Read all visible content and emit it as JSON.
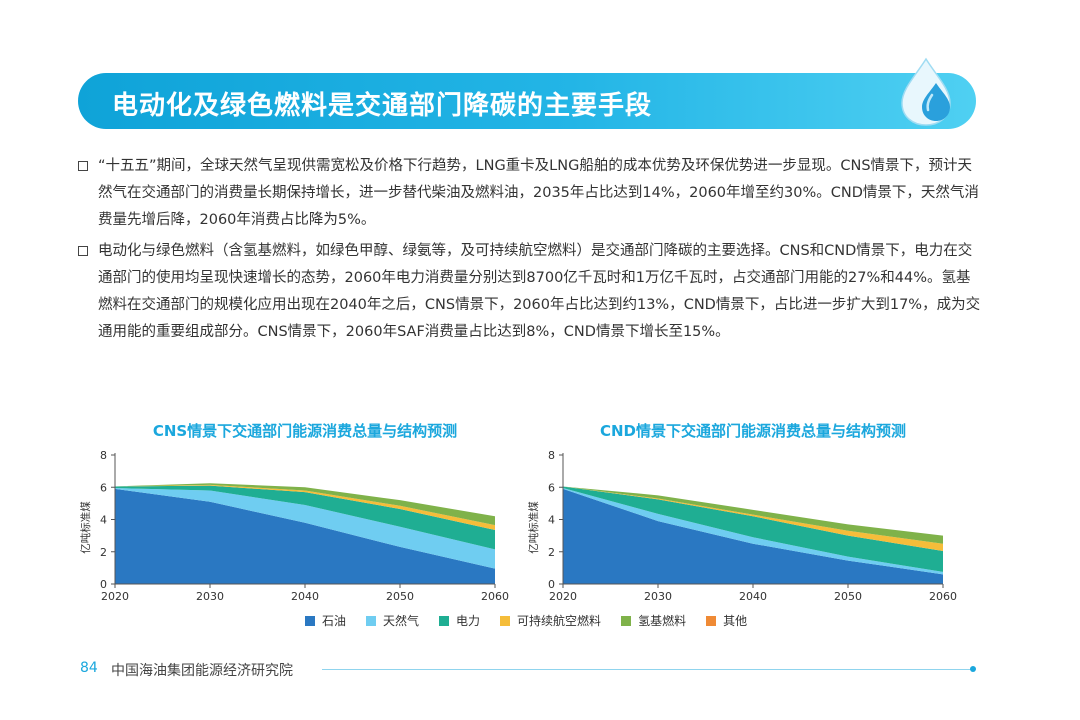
{
  "header": {
    "title": "电动化及绿色燃料是交通部门降碳的主要手段"
  },
  "paragraphs": [
    "“十五五”期间，全球天然气呈现供需宽松及价格下行趋势，LNG重卡及LNG船舶的成本优势及环保优势进一步显现。CNS情景下，预计天然气在交通部门的消费量长期保持增长，进一步替代柴油及燃料油，2035年占比达到14%，2060年增至约30%。CND情景下，天然气消费量先增后降，2060年消费占比降为5%。",
    "电动化与绿色燃料（含氢基燃料，如绿色甲醇、绿氨等，及可持续航空燃料）是交通部门降碳的主要选择。CNS和CND情景下，电力在交通部门的使用均呈现快速增长的态势，2060年电力消费量分别达到8700亿千瓦时和1万亿千瓦时，占交通部门用能的27%和44%。氢基燃料在交通部门的规模化应用出现在2040年之后，CNS情景下，2060年占比达到约13%，CND情景下，占比进一步扩大到17%，成为交通用能的重要组成部分。CNS情景下，2060年SAF消费量占比达到8%，CND情景下增长至15%。"
  ],
  "chart_data": [
    {
      "type": "area",
      "stacked": true,
      "title": "CNS情景下交通部门能源消费总量与结构预测",
      "ylabel": "亿吨标准煤",
      "xlabel": "",
      "x": [
        2020,
        2030,
        2040,
        2050,
        2060
      ],
      "ylim": [
        0,
        8
      ],
      "yticks": [
        0,
        2,
        4,
        6,
        8
      ],
      "series": [
        {
          "name": "石油",
          "values": [
            5.9,
            5.1,
            3.8,
            2.3,
            0.95
          ]
        },
        {
          "name": "天然气",
          "values": [
            0.05,
            0.7,
            1.1,
            1.25,
            1.2
          ]
        },
        {
          "name": "电力",
          "values": [
            0.1,
            0.3,
            0.8,
            1.1,
            1.2
          ]
        },
        {
          "name": "可持续航空燃料",
          "values": [
            0.0,
            0.05,
            0.1,
            0.2,
            0.3
          ]
        },
        {
          "name": "氢基燃料",
          "values": [
            0.0,
            0.1,
            0.2,
            0.35,
            0.55
          ]
        },
        {
          "name": "其他",
          "values": [
            0.0,
            0.0,
            0.0,
            0.0,
            0.0
          ]
        }
      ]
    },
    {
      "type": "area",
      "stacked": true,
      "title": "CND情景下交通部门能源消费总量与结构预测",
      "ylabel": "亿吨标准煤",
      "xlabel": "",
      "x": [
        2020,
        2030,
        2040,
        2050,
        2060
      ],
      "ylim": [
        0,
        8
      ],
      "yticks": [
        0,
        2,
        4,
        6,
        8
      ],
      "series": [
        {
          "name": "石油",
          "values": [
            5.9,
            3.9,
            2.5,
            1.45,
            0.6
          ]
        },
        {
          "name": "天然气",
          "values": [
            0.05,
            0.45,
            0.4,
            0.25,
            0.15
          ]
        },
        {
          "name": "电力",
          "values": [
            0.1,
            0.9,
            1.3,
            1.3,
            1.3
          ]
        },
        {
          "name": "可持续航空燃料",
          "values": [
            0.0,
            0.05,
            0.1,
            0.3,
            0.45
          ]
        },
        {
          "name": "氢基燃料",
          "values": [
            0.0,
            0.2,
            0.3,
            0.4,
            0.5
          ]
        },
        {
          "name": "其他",
          "values": [
            0.0,
            0.0,
            0.0,
            0.0,
            0.0
          ]
        }
      ]
    }
  ],
  "legend": [
    {
      "label": "石油",
      "color": "#2a78c2"
    },
    {
      "label": "天然气",
      "color": "#6fcdf1"
    },
    {
      "label": "电力",
      "color": "#1fae93"
    },
    {
      "label": "可持续航空燃料",
      "color": "#f5bd3a"
    },
    {
      "label": "氢基燃料",
      "color": "#7fb24a"
    },
    {
      "label": "其他",
      "color": "#ef8a35"
    }
  ],
  "footer": {
    "page_number": "84",
    "organization": "中国海油集团能源经济研究院"
  }
}
